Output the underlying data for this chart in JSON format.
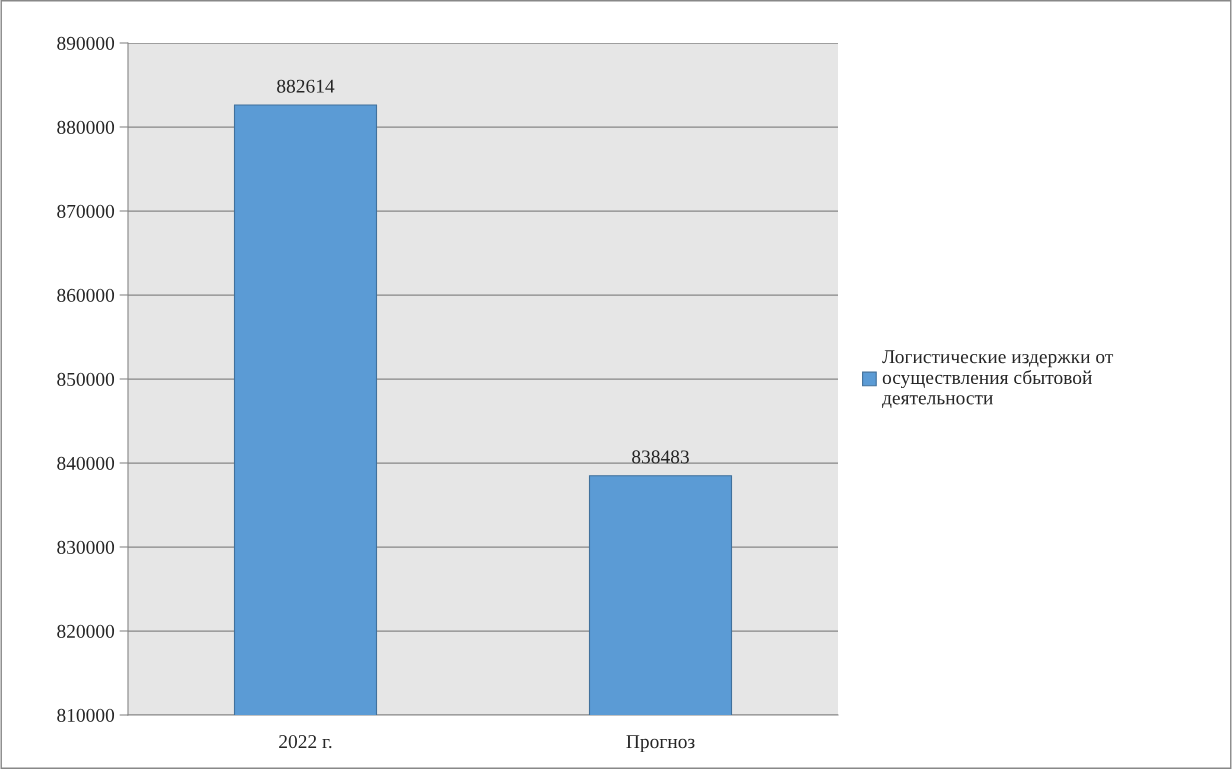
{
  "chart_data": {
    "type": "bar",
    "categories": [
      "2022 г.",
      "Прогноз"
    ],
    "series": [
      {
        "name": "Логистические издержки от\nосуществления сбытовой\nдеятельности",
        "color": "#5b9bd5",
        "values": [
          882614,
          838483
        ]
      }
    ],
    "ylim": [
      810000,
      890000
    ],
    "yticks": [
      810000,
      820000,
      830000,
      840000,
      850000,
      860000,
      870000,
      880000,
      890000
    ],
    "grid": "y",
    "legend": "right",
    "data_labels": true
  }
}
